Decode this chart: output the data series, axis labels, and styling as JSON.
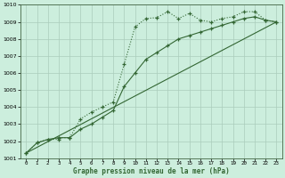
{
  "title": "Graphe pression niveau de la mer (hPa)",
  "bg_color": "#cceedd",
  "grid_color": "#aaccbb",
  "line_color": "#336633",
  "xlim": [
    -0.5,
    23.5
  ],
  "ylim": [
    1001,
    1010
  ],
  "xticks": [
    0,
    1,
    2,
    3,
    4,
    5,
    6,
    7,
    8,
    9,
    10,
    11,
    12,
    13,
    14,
    15,
    16,
    17,
    18,
    19,
    20,
    21,
    22,
    23
  ],
  "yticks": [
    1001,
    1002,
    1003,
    1004,
    1005,
    1006,
    1007,
    1008,
    1009,
    1010
  ],
  "line1_x": [
    0,
    1,
    2,
    3,
    3,
    4,
    5,
    6,
    7,
    8,
    9,
    10,
    11,
    12,
    13,
    14,
    15,
    16,
    17,
    18,
    19,
    20,
    21,
    22,
    23
  ],
  "line1_y": [
    1001.3,
    1001.9,
    1002.1,
    1002.1,
    1002.2,
    1002.2,
    1003.3,
    1003.7,
    1004.0,
    1004.3,
    1006.5,
    1008.7,
    1009.2,
    1009.25,
    1009.6,
    1009.2,
    1009.5,
    1009.1,
    1009.0,
    1009.2,
    1009.3,
    1009.6,
    1009.6,
    1009.1,
    1009.0
  ],
  "line2_x": [
    0,
    1,
    2,
    3,
    4,
    5,
    6,
    7,
    8,
    9,
    10,
    11,
    12,
    13,
    14,
    15,
    16,
    17,
    18,
    19,
    20,
    21,
    22,
    23
  ],
  "line2_y": [
    1001.3,
    1001.9,
    1002.1,
    1002.2,
    1002.2,
    1002.7,
    1003.0,
    1003.4,
    1003.8,
    1005.2,
    1006.0,
    1006.8,
    1007.2,
    1007.6,
    1008.0,
    1008.2,
    1008.4,
    1008.6,
    1008.8,
    1009.0,
    1009.2,
    1009.3,
    1009.1,
    1009.0
  ],
  "line3_x": [
    0,
    23
  ],
  "line3_y": [
    1001.3,
    1009.0
  ]
}
